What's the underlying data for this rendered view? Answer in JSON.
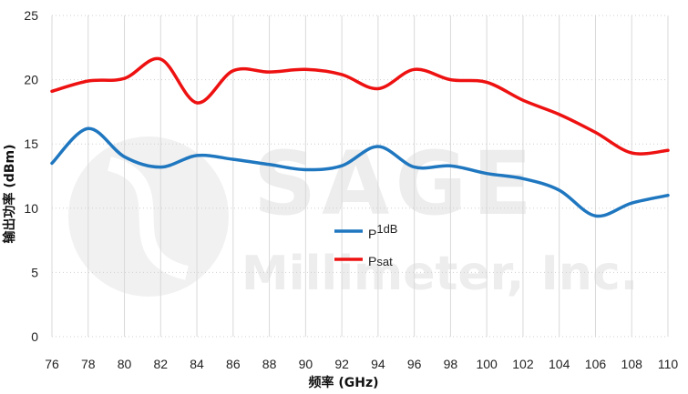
{
  "chart_data": {
    "type": "line",
    "title": "",
    "xlabel": "频率 (GHz)",
    "ylabel": "输出功率 (dBm)",
    "x": [
      76,
      78,
      80,
      82,
      84,
      86,
      88,
      90,
      92,
      94,
      96,
      98,
      100,
      102,
      104,
      106,
      108,
      110
    ],
    "xlim": [
      76,
      110
    ],
    "ylim": [
      0,
      25
    ],
    "xticks": [
      "76",
      "78",
      "80",
      "82",
      "84",
      "86",
      "88",
      "90",
      "92",
      "94",
      "96",
      "98",
      "100",
      "102",
      "104",
      "106",
      "108",
      "110"
    ],
    "yticks": [
      "0",
      "5",
      "10",
      "15",
      "20",
      "25"
    ],
    "grid": true,
    "legend_position": "center",
    "series": [
      {
        "name_main": "P",
        "name_sub": "1dB",
        "color": "#1f77c0",
        "values": [
          13.5,
          16.2,
          14.0,
          13.2,
          14.1,
          13.8,
          13.4,
          13.0,
          13.3,
          14.8,
          13.2,
          13.3,
          12.7,
          12.3,
          11.4,
          9.4,
          10.4,
          11.0
        ]
      },
      {
        "name_main": "P",
        "name_sub": "sat",
        "color": "#ee1111",
        "values": [
          19.1,
          19.9,
          20.1,
          21.6,
          18.2,
          20.7,
          20.6,
          20.8,
          20.4,
          19.3,
          20.8,
          20.0,
          19.8,
          18.4,
          17.3,
          15.9,
          14.3,
          14.5
        ]
      }
    ]
  },
  "watermark": {
    "line1": "SAGE",
    "line2": "Millimeter, Inc."
  }
}
